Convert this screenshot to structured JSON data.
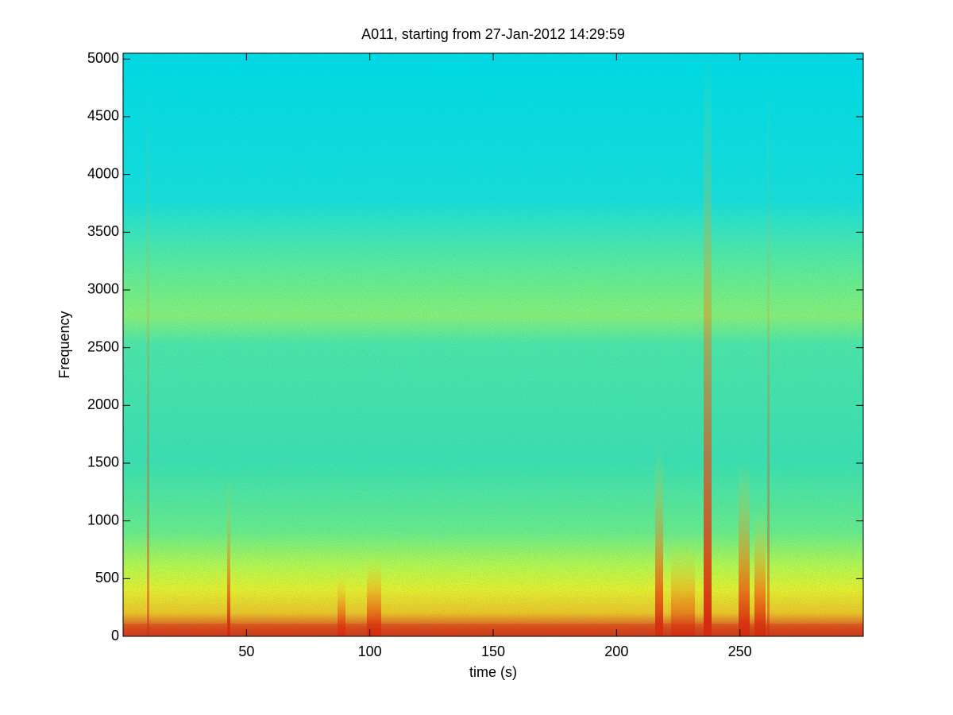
{
  "chart_data": {
    "type": "spectrogram",
    "title": "A011, starting from 27-Jan-2012 14:29:59",
    "x_label": "time (s)",
    "y_label": "Frequency",
    "xlim": [
      0,
      300
    ],
    "xticks": [
      50,
      100,
      150,
      200,
      250
    ],
    "ylim": [
      0,
      5050
    ],
    "yticks": [
      0,
      500,
      1000,
      1500,
      2000,
      2500,
      3000,
      3500,
      4000,
      4500,
      5000
    ]
  }
}
